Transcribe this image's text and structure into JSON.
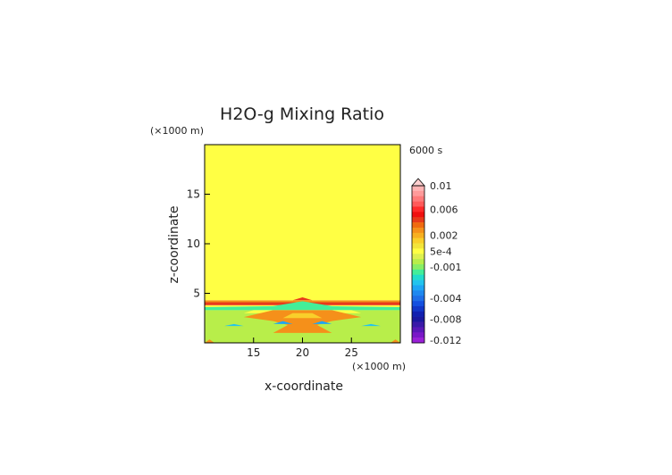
{
  "chart_data": {
    "type": "heatmap",
    "title": "H2O-g Mixing Ratio",
    "xlabel": "x-coordinate",
    "ylabel": "z-coordinate",
    "x_unit": "(×1000 m)",
    "y_unit": "(×1000 m)",
    "time_label": "6000 s",
    "xlim": [
      10,
      30
    ],
    "ylim": [
      0,
      20
    ],
    "x_ticks": [
      15,
      20,
      25
    ],
    "y_ticks": [
      5,
      10,
      15
    ],
    "colorbar": {
      "labels": [
        "0.01",
        "0.006",
        "0.002",
        "5e-4",
        "-0.001",
        "-0.004",
        "-0.008",
        "-0.012"
      ],
      "label_values": [
        0.01,
        0.006,
        0.002,
        0.0005,
        -0.001,
        -0.004,
        -0.008,
        -0.012
      ],
      "levels": [
        {
          "value": 0.01,
          "color": "#ffb3b3"
        },
        {
          "value": 0.009,
          "color": "#ff9a9a"
        },
        {
          "value": 0.008,
          "color": "#ff7a7a"
        },
        {
          "value": 0.007,
          "color": "#ff5a5a"
        },
        {
          "value": 0.006,
          "color": "#ff2a2a"
        },
        {
          "value": 0.005,
          "color": "#f01010"
        },
        {
          "value": 0.004,
          "color": "#e83a1a"
        },
        {
          "value": 0.003,
          "color": "#f06a10"
        },
        {
          "value": 0.0025,
          "color": "#f5901a"
        },
        {
          "value": 0.002,
          "color": "#f7b020"
        },
        {
          "value": 0.0015,
          "color": "#f9cf2a"
        },
        {
          "value": 0.001,
          "color": "#f3e43a"
        },
        {
          "value": 0.0005,
          "color": "#ffff44"
        },
        {
          "value": 0.0,
          "color": "#ddf050"
        },
        {
          "value": -0.0005,
          "color": "#b8ee4a"
        },
        {
          "value": -0.001,
          "color": "#88ee66"
        },
        {
          "value": -0.0015,
          "color": "#44ee99"
        },
        {
          "value": -0.002,
          "color": "#22ddcc"
        },
        {
          "value": -0.0025,
          "color": "#22c4ee"
        },
        {
          "value": -0.003,
          "color": "#1ea5f5"
        },
        {
          "value": -0.0035,
          "color": "#1e88f0"
        },
        {
          "value": -0.004,
          "color": "#1e6ee8"
        },
        {
          "value": -0.005,
          "color": "#1450e0"
        },
        {
          "value": -0.006,
          "color": "#1236c8"
        },
        {
          "value": -0.007,
          "color": "#1220b0"
        },
        {
          "value": -0.008,
          "color": "#1a18a0"
        },
        {
          "value": -0.009,
          "color": "#3a1aa8"
        },
        {
          "value": -0.01,
          "color": "#5a18b8"
        },
        {
          "value": -0.011,
          "color": "#7a18c8"
        },
        {
          "value": -0.012,
          "color": "#9a20d8"
        }
      ]
    },
    "regions": [
      {
        "shape": "band",
        "z": [
          0,
          3.3
        ],
        "value": -0.0005
      },
      {
        "shape": "band",
        "z": [
          3.3,
          3.8
        ],
        "value": 0.0005
      },
      {
        "shape": "band",
        "z": [
          3.8,
          4.1
        ],
        "value": 0.004
      },
      {
        "shape": "band",
        "z": [
          4.1,
          4.3
        ],
        "value": 0.0025
      },
      {
        "shape": "band",
        "z": [
          4.3,
          20
        ],
        "value": 0.0005
      },
      {
        "shape": "poly",
        "value": -0.0015,
        "points": [
          [
            10,
            3.3
          ],
          [
            30,
            3.3
          ],
          [
            30,
            3.6
          ],
          [
            23,
            3.7
          ],
          [
            20,
            4.2
          ],
          [
            17,
            3.7
          ],
          [
            10,
            3.6
          ]
        ]
      },
      {
        "shape": "poly",
        "value": 0.0005,
        "points": [
          [
            14,
            3.0
          ],
          [
            26,
            3.0
          ],
          [
            25,
            3.3
          ],
          [
            15,
            3.3
          ]
        ]
      },
      {
        "shape": "poly",
        "value": 0.0025,
        "points": [
          [
            14,
            2.6
          ],
          [
            17,
            3.3
          ],
          [
            23,
            3.3
          ],
          [
            26,
            2.6
          ],
          [
            23,
            2.2
          ],
          [
            21.5,
            1.8
          ],
          [
            23,
            1.0
          ],
          [
            17,
            1.0
          ],
          [
            18.5,
            1.8
          ],
          [
            17,
            2.2
          ]
        ]
      },
      {
        "shape": "poly",
        "value": 0.0015,
        "points": [
          [
            18,
            2.5
          ],
          [
            22,
            2.5
          ],
          [
            21,
            3.0
          ],
          [
            19,
            3.0
          ]
        ]
      },
      {
        "shape": "poly",
        "value": -0.003,
        "points": [
          [
            17,
            1.9
          ],
          [
            19,
            1.9
          ],
          [
            18,
            2.2
          ]
        ]
      },
      {
        "shape": "poly",
        "value": -0.003,
        "points": [
          [
            21,
            1.9
          ],
          [
            23,
            1.9
          ],
          [
            22,
            2.2
          ]
        ]
      },
      {
        "shape": "poly",
        "value": -0.0025,
        "points": [
          [
            12,
            1.7
          ],
          [
            14,
            1.7
          ],
          [
            13,
            1.9
          ]
        ]
      },
      {
        "shape": "poly",
        "value": -0.0025,
        "points": [
          [
            26,
            1.7
          ],
          [
            28,
            1.7
          ],
          [
            27,
            1.9
          ]
        ]
      },
      {
        "shape": "poly",
        "value": 0.004,
        "points": [
          [
            19,
            4.3
          ],
          [
            21,
            4.3
          ],
          [
            20,
            4.6
          ]
        ]
      },
      {
        "shape": "poly",
        "value": 0.0025,
        "points": [
          [
            10,
            0
          ],
          [
            11,
            0
          ],
          [
            10.5,
            0.35
          ]
        ]
      },
      {
        "shape": "poly",
        "value": 0.0025,
        "points": [
          [
            29,
            0
          ],
          [
            30,
            0
          ],
          [
            29.5,
            0.35
          ]
        ]
      }
    ]
  }
}
